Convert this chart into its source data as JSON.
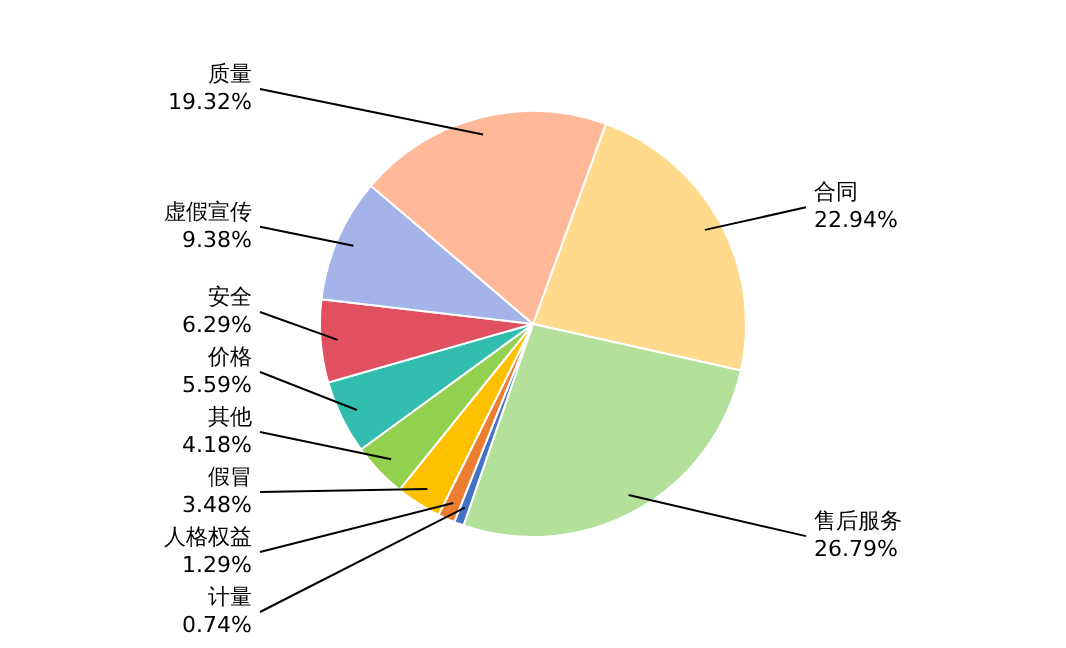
{
  "chart_data": {
    "type": "pie",
    "categories": [
      "合同",
      "售后服务",
      "计量",
      "人格权益",
      "假冒",
      "其他",
      "价格",
      "安全",
      "虚假宣传",
      "质量"
    ],
    "values": [
      22.94,
      26.79,
      0.74,
      1.29,
      3.48,
      4.18,
      5.59,
      6.29,
      9.38,
      19.32
    ],
    "colors": [
      "#ffd98c",
      "#b3e09a",
      "#4472c4",
      "#ed7d31",
      "#ffc000",
      "#92d050",
      "#33bdb0",
      "#e0505f",
      "#a4b4e8",
      "#ffb999"
    ],
    "value_labels": [
      "22.94%",
      "26.79%",
      "0.74%",
      "1.29%",
      "3.48%",
      "4.18%",
      "5.59%",
      "6.29%",
      "9.38%",
      "19.32%"
    ],
    "legend": false
  }
}
